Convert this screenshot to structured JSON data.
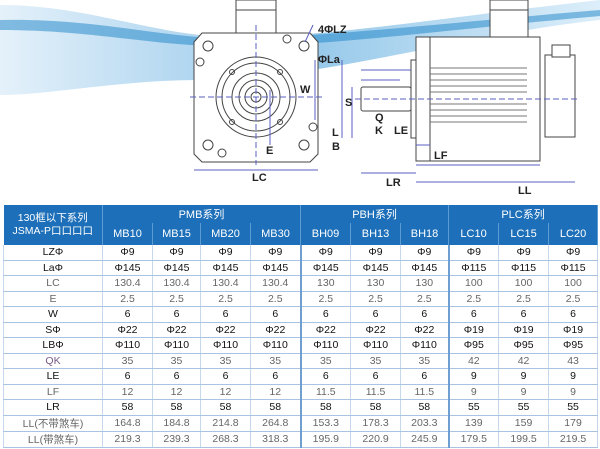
{
  "drawing": {
    "labels": {
      "lz": "4ΦLZ",
      "la": "ΦLa",
      "w": "W",
      "e": "E",
      "lc": "LC",
      "s": "S",
      "q": "Q",
      "k": "K",
      "l": "L",
      "b": "B",
      "le": "LE",
      "lf": "LF",
      "lr": "LR",
      "ll": "LL"
    }
  },
  "table": {
    "corner_line1": "130框以下系列",
    "corner_line2": "JSMA-P口口口口",
    "groups": [
      "PMB系列",
      "PBH系列",
      "PLC系列"
    ],
    "models": [
      "MB10",
      "MB15",
      "MB20",
      "MB30",
      "BH09",
      "BH13",
      "BH18",
      "LC10",
      "LC15",
      "LC20"
    ],
    "rows": [
      {
        "label": "LZΦ",
        "values": [
          "Φ9",
          "Φ9",
          "Φ9",
          "Φ9",
          "Φ9",
          "Φ9",
          "Φ9",
          "Φ9",
          "Φ9",
          "Φ9"
        ]
      },
      {
        "label": "LaΦ",
        "values": [
          "Φ145",
          "Φ145",
          "Φ145",
          "Φ145",
          "Φ145",
          "Φ145",
          "Φ145",
          "Φ115",
          "Φ115",
          "Φ115"
        ]
      },
      {
        "label": "LC",
        "values": [
          "130.4",
          "130.4",
          "130.4",
          "130.4",
          "130",
          "130",
          "130",
          "100",
          "100",
          "100"
        ]
      },
      {
        "label": "E",
        "values": [
          "2.5",
          "2.5",
          "2.5",
          "2.5",
          "2.5",
          "2.5",
          "2.5",
          "2.5",
          "2.5",
          "2.5"
        ]
      },
      {
        "label": "W",
        "values": [
          "6",
          "6",
          "6",
          "6",
          "6",
          "6",
          "6",
          "6",
          "6",
          "6"
        ]
      },
      {
        "label": "SΦ",
        "values": [
          "Φ22",
          "Φ22",
          "Φ22",
          "Φ22",
          "Φ22",
          "Φ22",
          "Φ22",
          "Φ19",
          "Φ19",
          "Φ19"
        ]
      },
      {
        "label": "LBΦ",
        "values": [
          "Φ110",
          "Φ110",
          "Φ110",
          "Φ110",
          "Φ110",
          "Φ110",
          "Φ110",
          "Φ95",
          "Φ95",
          "Φ95"
        ]
      },
      {
        "label": "QK",
        "values": [
          "35",
          "35",
          "35",
          "35",
          "35",
          "35",
          "35",
          "42",
          "42",
          "43"
        ]
      },
      {
        "label": "LE",
        "values": [
          "6",
          "6",
          "6",
          "6",
          "6",
          "6",
          "6",
          "9",
          "9",
          "9"
        ]
      },
      {
        "label": "LF",
        "values": [
          "12",
          "12",
          "12",
          "12",
          "11.5",
          "11.5",
          "11.5",
          "9",
          "9",
          "9"
        ]
      },
      {
        "label": "LR",
        "values": [
          "58",
          "58",
          "58",
          "58",
          "58",
          "58",
          "58",
          "55",
          "55",
          "55"
        ]
      },
      {
        "label": "LL(不带煞车)",
        "values": [
          "164.8",
          "184.8",
          "214.8",
          "264.8",
          "153.3",
          "178.3",
          "203.3",
          "139",
          "159",
          "179"
        ]
      },
      {
        "label": "LL(带煞车)",
        "values": [
          "219.3",
          "239.3",
          "268.3",
          "318.3",
          "195.9",
          "220.9",
          "245.9",
          "179.5",
          "199.5",
          "219.5"
        ]
      }
    ]
  },
  "colors": {
    "header": "#1c6fb8",
    "wave": "#2f8fd0",
    "dimension": "#5a5fc0"
  }
}
